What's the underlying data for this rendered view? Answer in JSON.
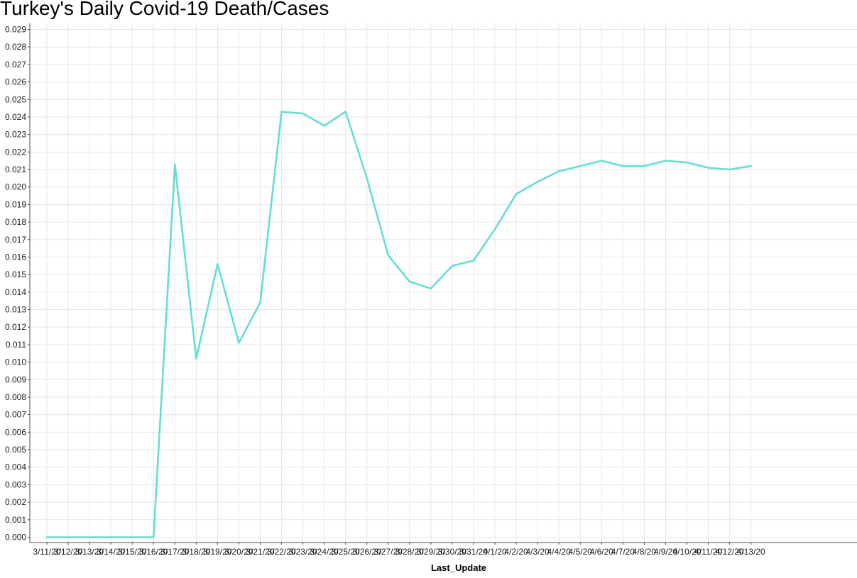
{
  "chart_data": {
    "type": "line",
    "title": "Turkey's Daily Covid-19 Death/Cases",
    "xlabel": "Last_Update",
    "ylabel": "",
    "ylim": [
      0.0,
      0.029
    ],
    "yticks": [
      "0.000",
      "0.001",
      "0.002",
      "0.003",
      "0.004",
      "0.005",
      "0.006",
      "0.007",
      "0.008",
      "0.009",
      "0.010",
      "0.011",
      "0.012",
      "0.013",
      "0.014",
      "0.015",
      "0.016",
      "0.017",
      "0.018",
      "0.019",
      "0.020",
      "0.021",
      "0.022",
      "0.023",
      "0.024",
      "0.025",
      "0.026",
      "0.027",
      "0.028",
      "0.029"
    ],
    "grid": true,
    "legend": "none",
    "line_color": "#66ddd3",
    "x": [
      "3/11/20",
      "3/12/20",
      "3/13/20",
      "3/14/20",
      "3/15/20",
      "3/16/20",
      "3/17/20",
      "3/18/20",
      "3/19/20",
      "3/20/20",
      "3/21/20",
      "3/22/20",
      "3/23/20",
      "3/24/20",
      "3/25/20",
      "3/26/20",
      "3/27/20",
      "3/28/20",
      "3/29/20",
      "3/30/20",
      "3/31/20",
      "4/1/20",
      "4/2/20",
      "4/3/20",
      "4/4/20",
      "4/5/20",
      "4/6/20",
      "4/7/20",
      "4/8/20",
      "4/9/20",
      "4/10/20",
      "4/11/20",
      "4/12/20",
      "4/13/20"
    ],
    "series": [
      {
        "values": [
          0.0,
          0.0,
          0.0,
          0.0,
          0.0,
          0.0,
          0.0213,
          0.0102,
          0.0156,
          0.0111,
          0.0134,
          0.0243,
          0.0242,
          0.0235,
          0.0243,
          0.0205,
          0.0161,
          0.0146,
          0.0142,
          0.0155,
          0.0158,
          0.0176,
          0.0196,
          0.0203,
          0.0209,
          0.0212,
          0.0215,
          0.0212,
          0.0212,
          0.0215,
          0.0214,
          0.0211,
          0.021,
          0.0212
        ]
      }
    ]
  }
}
